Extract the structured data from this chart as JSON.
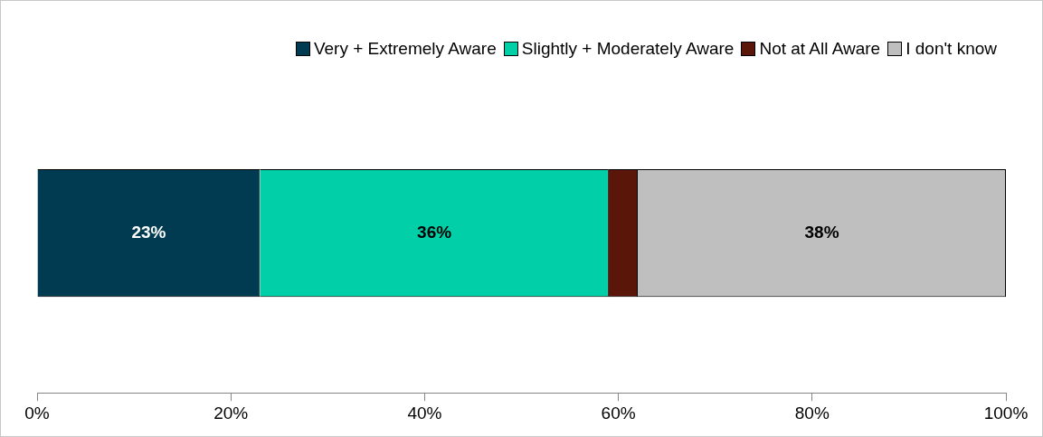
{
  "chart_data": {
    "type": "bar",
    "orientation": "horizontal",
    "stacked": true,
    "categories": [
      null
    ],
    "series": [
      {
        "name": "Very + Extremely Aware",
        "color": "#003b52",
        "values": [
          23
        ],
        "value_labels": [
          "23%"
        ]
      },
      {
        "name": "Slightly + Moderately Aware",
        "color": "#00cfa8",
        "values": [
          36
        ],
        "value_labels": [
          "36%"
        ]
      },
      {
        "name": "Not at All Aware",
        "color": "#5a1608",
        "values": [
          3
        ],
        "value_labels": [
          null
        ]
      },
      {
        "name": "I don't know",
        "color": "#bfbfbf",
        "values": [
          38
        ],
        "value_labels": [
          "38%"
        ]
      }
    ],
    "xlim": [
      0,
      100
    ],
    "xticks": [
      {
        "value": 0,
        "label": "0%"
      },
      {
        "value": 20,
        "label": "20%"
      },
      {
        "value": 40,
        "label": "40%"
      },
      {
        "value": 60,
        "label": "60%"
      },
      {
        "value": 80,
        "label": "80%"
      },
      {
        "value": 100,
        "label": "100%"
      }
    ],
    "grid": false,
    "legend": "top right"
  }
}
